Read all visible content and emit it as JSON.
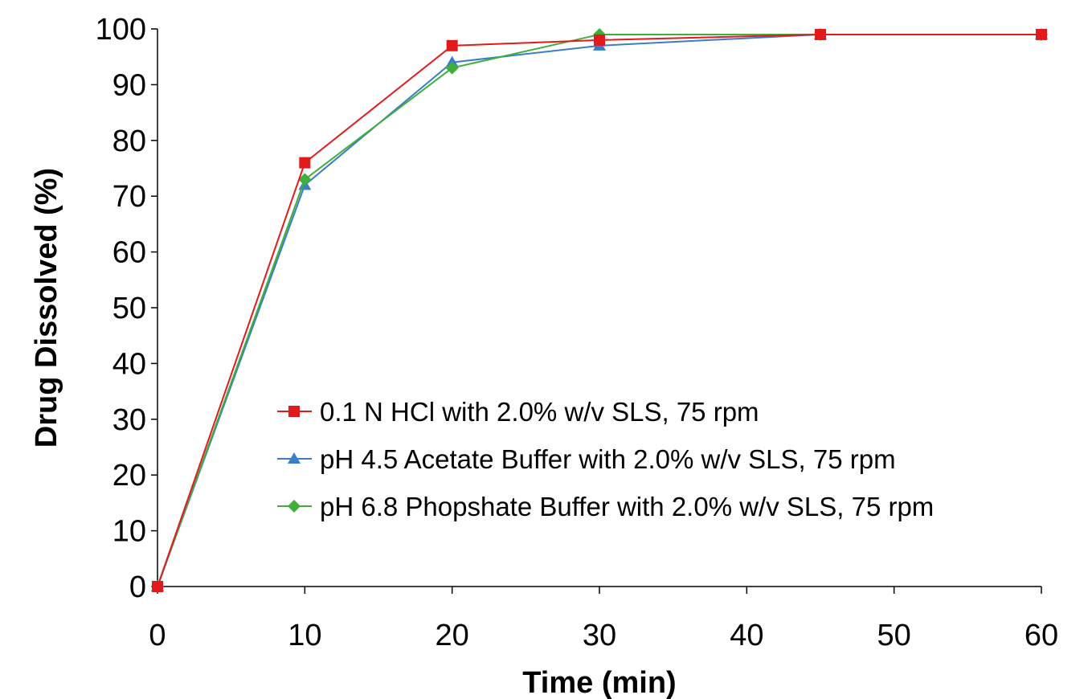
{
  "chart_data": {
    "type": "line",
    "title": "",
    "xlabel": "Time (min)",
    "ylabel": "Drug Dissolved (%)",
    "xlim": [
      0,
      60
    ],
    "ylim": [
      0,
      100
    ],
    "xticks": [
      0,
      10,
      20,
      30,
      40,
      50,
      60
    ],
    "yticks": [
      0,
      10,
      20,
      30,
      40,
      50,
      60,
      70,
      80,
      90,
      100
    ],
    "x": [
      0,
      10,
      20,
      30,
      45,
      60
    ],
    "grid": false,
    "legend_position": "center-right",
    "series": [
      {
        "name": "0.1 N HCl with 2.0% w/v SLS, 75 rpm",
        "values": [
          0,
          76,
          97,
          98,
          99,
          99
        ],
        "color": "#e31a1c",
        "marker": "square"
      },
      {
        "name": "pH 4.5 Acetate Buffer with 2.0% w/v SLS, 75 rpm",
        "values": [
          0,
          72,
          94,
          97,
          99,
          99
        ],
        "color": "#3a7dc9",
        "marker": "triangle"
      },
      {
        "name": "pH 6.8 Phopshate Buffer with 2.0% w/v SLS, 75 rpm",
        "values": [
          0,
          73,
          93,
          99,
          99,
          99
        ],
        "color": "#3fae3a",
        "marker": "diamond"
      }
    ]
  }
}
